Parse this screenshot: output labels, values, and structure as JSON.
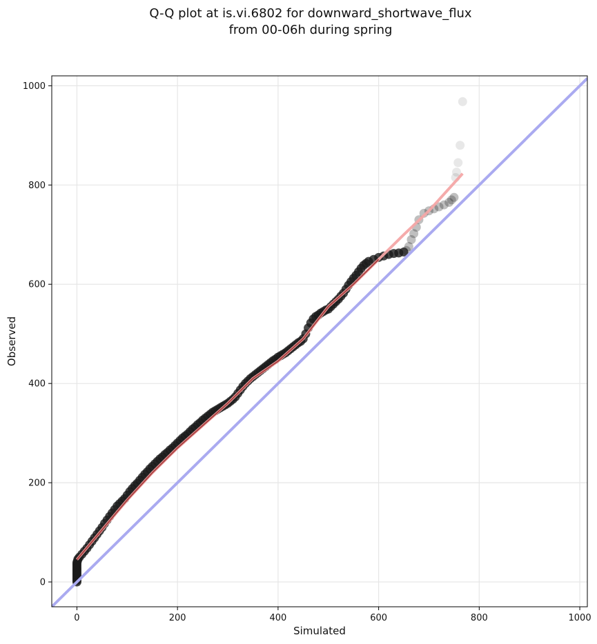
{
  "chart_data": {
    "type": "scatter",
    "title": "Q-Q plot at is.vi.6802 for downward_shortwave_flux",
    "subtitle": "from 00-06h during spring",
    "xlabel": "Simulated",
    "ylabel": "Observed",
    "xlim": [
      -50,
      1015
    ],
    "ylim": [
      -50,
      1020
    ],
    "xticks": [
      0,
      200,
      400,
      600,
      800,
      1000
    ],
    "yticks": [
      0,
      200,
      400,
      600,
      800,
      1000
    ],
    "grid": true,
    "colors": {
      "points": "#1a1a1a",
      "reference_line": "#aaaaf0",
      "fit_line": "#f4a6a6",
      "fit_line_dense": "#8b1a1a"
    },
    "reference_line": {
      "x": [
        -50,
        1015
      ],
      "y": [
        -50,
        1015
      ]
    },
    "fit_line": {
      "x": [
        0,
        50,
        100,
        150,
        200,
        250,
        300,
        350,
        400,
        450,
        500,
        550,
        600,
        650,
        700,
        767
      ],
      "y": [
        45,
        105,
        165,
        220,
        270,
        315,
        360,
        410,
        445,
        490,
        555,
        600,
        650,
        700,
        748,
        823
      ]
    },
    "quantiles": {
      "x": [
        0,
        0,
        0,
        0,
        0,
        0,
        0,
        0,
        0,
        0,
        0,
        0,
        0,
        0,
        1,
        2,
        5,
        10,
        15,
        20,
        25,
        30,
        35,
        40,
        45,
        50,
        55,
        60,
        65,
        70,
        75,
        80,
        85,
        90,
        95,
        100,
        105,
        110,
        115,
        120,
        125,
        130,
        135,
        140,
        145,
        150,
        155,
        160,
        165,
        170,
        175,
        180,
        185,
        190,
        195,
        200,
        205,
        210,
        215,
        220,
        225,
        230,
        235,
        240,
        245,
        250,
        255,
        260,
        265,
        270,
        275,
        280,
        285,
        290,
        295,
        300,
        305,
        310,
        315,
        320,
        325,
        330,
        335,
        340,
        345,
        350,
        355,
        360,
        365,
        370,
        375,
        380,
        385,
        390,
        395,
        400,
        405,
        410,
        415,
        420,
        425,
        430,
        435,
        440,
        445,
        450,
        455,
        460,
        465,
        470,
        475,
        480,
        485,
        490,
        495,
        500,
        505,
        510,
        515,
        520,
        525,
        530,
        535,
        540,
        545,
        550,
        555,
        560,
        565,
        570,
        575,
        580,
        590,
        600,
        610,
        620,
        630,
        640,
        650,
        655,
        660,
        665,
        670,
        675,
        680,
        690,
        700,
        710,
        720,
        730,
        740,
        745,
        750,
        753,
        755,
        758,
        762,
        767
      ],
      "y": [
        0,
        3,
        6,
        9,
        12,
        15,
        18,
        21,
        24,
        27,
        30,
        33,
        36,
        39,
        42,
        46,
        50,
        56,
        62,
        68,
        75,
        82,
        89,
        96,
        103,
        110,
        118,
        125,
        132,
        139,
        146,
        153,
        158,
        163,
        168,
        175,
        182,
        188,
        194,
        199,
        205,
        211,
        217,
        222,
        228,
        233,
        238,
        243,
        248,
        252,
        257,
        261,
        266,
        270,
        275,
        280,
        285,
        290,
        294,
        298,
        303,
        308,
        312,
        317,
        321,
        326,
        330,
        334,
        338,
        342,
        345,
        348,
        351,
        354,
        357,
        360,
        364,
        368,
        373,
        380,
        387,
        394,
        400,
        405,
        410,
        414,
        418,
        422,
        426,
        430,
        434,
        438,
        442,
        446,
        449,
        453,
        456,
        459,
        462,
        466,
        470,
        474,
        478,
        482,
        485,
        490,
        500,
        512,
        522,
        530,
        535,
        538,
        542,
        545,
        548,
        550,
        555,
        560,
        565,
        570,
        576,
        582,
        590,
        598,
        605,
        612,
        618,
        625,
        632,
        638,
        642,
        646,
        650,
        654,
        657,
        660,
        662,
        663,
        665,
        668,
        676,
        690,
        702,
        715,
        730,
        743,
        748,
        752,
        756,
        760,
        765,
        770,
        775,
        815,
        826,
        845,
        880,
        968
      ]
    }
  }
}
